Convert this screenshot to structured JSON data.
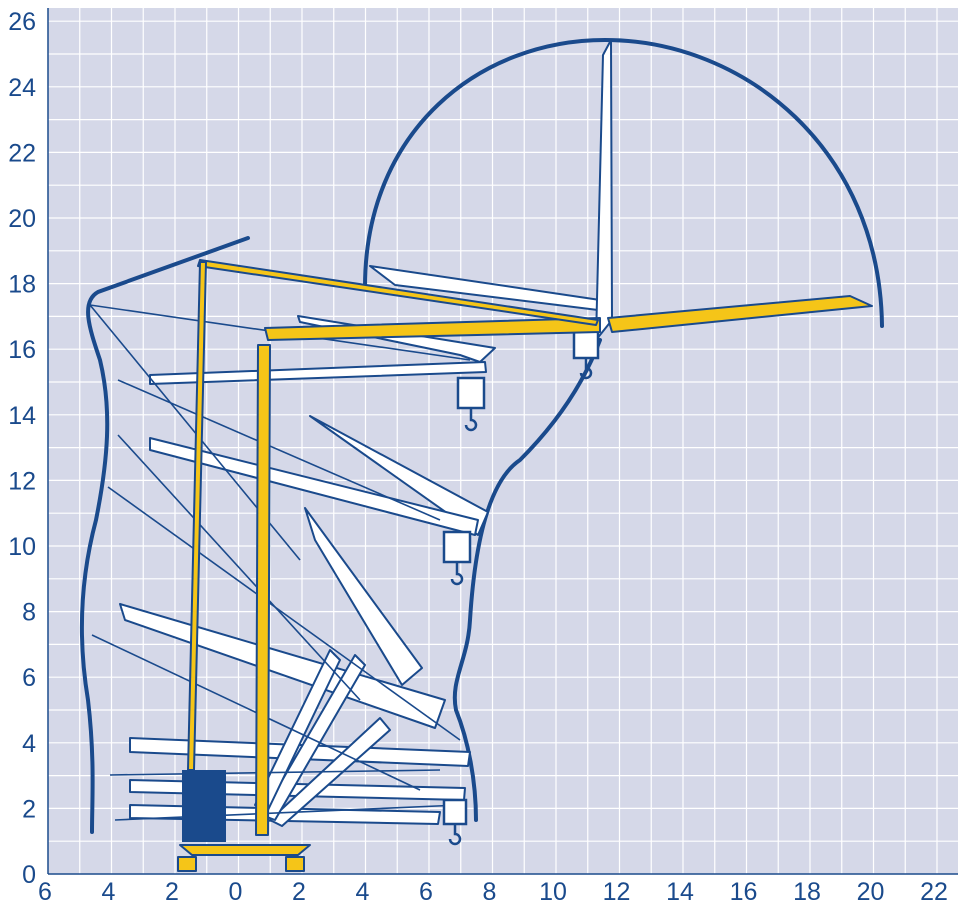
{
  "diagram": {
    "type": "crane working range diagram",
    "colors": {
      "background": "#d5d8e8",
      "grid": "#ffffff",
      "outline": "#1a4a8c",
      "crane": "#f5c518",
      "counterweight": "#1a4a8c",
      "tick_text": "#1a4a8c"
    },
    "x_ticks": [
      "6",
      "4",
      "2",
      "0",
      "2",
      "4",
      "6",
      "8",
      "10",
      "12",
      "14",
      "16",
      "18",
      "20",
      "22"
    ],
    "y_ticks": [
      "0",
      "2",
      "4",
      "6",
      "8",
      "10",
      "12",
      "14",
      "16",
      "18",
      "20",
      "22",
      "24",
      "26"
    ]
  }
}
